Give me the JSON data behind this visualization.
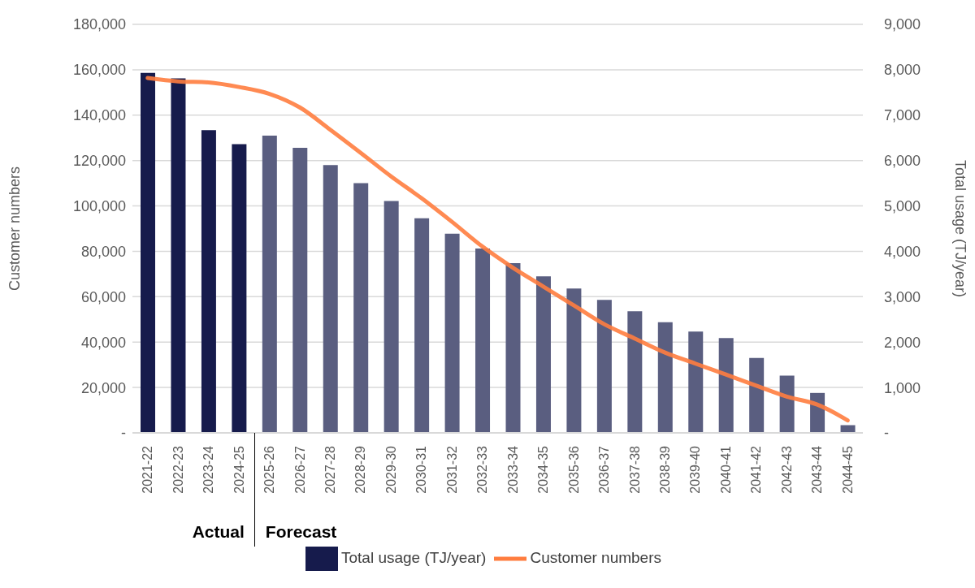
{
  "chart_data": {
    "type": "bar",
    "ylabel": "Customer numbers",
    "y2label": "Total usage (TJ/year)",
    "categories": [
      "2021-22",
      "2022-23",
      "2023-24",
      "2024-25",
      "2025-26",
      "2026-27",
      "2027-28",
      "2028-29",
      "2029-30",
      "2030-31",
      "2031-32",
      "2032-33",
      "2033-34",
      "2034-35",
      "2035-36",
      "2036-37",
      "2037-38",
      "2038-39",
      "2039-40",
      "2040-41",
      "2041-42",
      "2042-43",
      "2043-44",
      "2044-45"
    ],
    "series": [
      {
        "name": "Total usage (TJ/year)",
        "axis": "y2",
        "color": "#161b4c",
        "colors": [
          "#161b4c",
          "#161b4c",
          "#161b4c",
          "#161b4c",
          "#5a5e80",
          "#5a5e80",
          "#5a5e80",
          "#5a5e80",
          "#5a5e80",
          "#5a5e80",
          "#5a5e80",
          "#5a5e80",
          "#5a5e80",
          "#5a5e80",
          "#5a5e80",
          "#5a5e80",
          "#5a5e80",
          "#5a5e80",
          "#5a5e80",
          "#5a5e80",
          "#5a5e80",
          "#5a5e80",
          "#5a5e80",
          "#5a5e80"
        ],
        "values": [
          7930,
          7810,
          6670,
          6360,
          6550,
          6280,
          5900,
          5500,
          5110,
          4730,
          4390,
          4060,
          3740,
          3450,
          3180,
          2930,
          2680,
          2440,
          2230,
          2090,
          1650,
          1260,
          880,
          170
        ]
      },
      {
        "name": "Customer numbers",
        "type": "line",
        "axis": "y",
        "color": "#ff7d3f",
        "values": [
          156400,
          154900,
          154400,
          152400,
          149400,
          143400,
          133600,
          123400,
          113000,
          103400,
          93000,
          82100,
          72800,
          64500,
          56200,
          47900,
          41600,
          35400,
          30500,
          25700,
          20800,
          16000,
          12500,
          5500
        ]
      }
    ],
    "ylim": [
      0,
      180000
    ],
    "yticks": [
      {
        "value": 0,
        "label": "-"
      },
      {
        "value": 20000,
        "label": "20,000"
      },
      {
        "value": 40000,
        "label": "40,000"
      },
      {
        "value": 60000,
        "label": "60,000"
      },
      {
        "value": 80000,
        "label": "80,000"
      },
      {
        "value": 100000,
        "label": "100,000"
      },
      {
        "value": 120000,
        "label": "120,000"
      },
      {
        "value": 140000,
        "label": "140,000"
      },
      {
        "value": 160000,
        "label": "160,000"
      },
      {
        "value": 180000,
        "label": "180,000"
      }
    ],
    "y2lim": [
      0,
      9000
    ],
    "y2ticks": [
      {
        "value": 0,
        "label": "-"
      },
      {
        "value": 1000,
        "label": "1,000"
      },
      {
        "value": 2000,
        "label": "2,000"
      },
      {
        "value": 3000,
        "label": "3,000"
      },
      {
        "value": 4000,
        "label": "4,000"
      },
      {
        "value": 5000,
        "label": "5,000"
      },
      {
        "value": 6000,
        "label": "6,000"
      },
      {
        "value": 7000,
        "label": "7,000"
      },
      {
        "value": 8000,
        "label": "8,000"
      },
      {
        "value": 9000,
        "label": "9,000"
      }
    ],
    "annotations": [
      "Actual",
      "Forecast"
    ],
    "grid": "y",
    "legend": "bottom",
    "marker": "none",
    "line_style": "solid"
  }
}
